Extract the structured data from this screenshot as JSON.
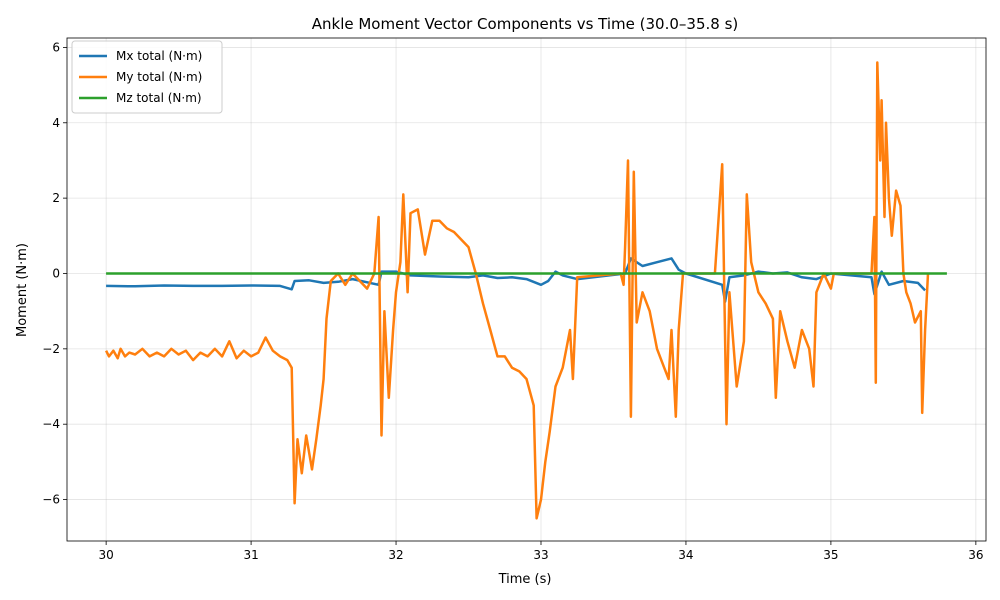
{
  "chart_data": {
    "type": "line",
    "title": "Ankle Moment Vector Components vs Time (30.0–35.8 s)",
    "xlabel": "Time (s)",
    "ylabel": "Moment (N·m)",
    "xlim": [
      29.73,
      36.07
    ],
    "ylim": [
      -7.1,
      6.25
    ],
    "xticks": [
      30,
      31,
      32,
      33,
      34,
      35,
      36
    ],
    "yticks": [
      -6,
      -4,
      -2,
      0,
      2,
      4,
      6
    ],
    "xtick_labels": [
      "30",
      "31",
      "32",
      "33",
      "34",
      "35",
      "36"
    ],
    "ytick_labels": [
      "−6",
      "−4",
      "−2",
      "0",
      "2",
      "4",
      "6"
    ],
    "grid": true,
    "legend_position": "top-left",
    "series": [
      {
        "name": "Mx total (N·m)",
        "color": "#1f77b4",
        "points": [
          [
            30.0,
            -0.33
          ],
          [
            30.2,
            -0.34
          ],
          [
            30.4,
            -0.32
          ],
          [
            30.6,
            -0.33
          ],
          [
            30.8,
            -0.33
          ],
          [
            31.0,
            -0.32
          ],
          [
            31.2,
            -0.33
          ],
          [
            31.28,
            -0.42
          ],
          [
            31.3,
            -0.2
          ],
          [
            31.4,
            -0.18
          ],
          [
            31.5,
            -0.25
          ],
          [
            31.6,
            -0.22
          ],
          [
            31.7,
            -0.15
          ],
          [
            31.88,
            -0.3
          ],
          [
            31.9,
            0.05
          ],
          [
            32.0,
            0.05
          ],
          [
            32.1,
            -0.05
          ],
          [
            32.3,
            -0.08
          ],
          [
            32.5,
            -0.1
          ],
          [
            32.6,
            -0.05
          ],
          [
            32.7,
            -0.12
          ],
          [
            32.8,
            -0.1
          ],
          [
            32.9,
            -0.15
          ],
          [
            33.0,
            -0.3
          ],
          [
            33.05,
            -0.2
          ],
          [
            33.1,
            0.05
          ],
          [
            33.15,
            -0.05
          ],
          [
            33.25,
            -0.15
          ],
          [
            33.58,
            0.0
          ],
          [
            33.62,
            0.4
          ],
          [
            33.7,
            0.2
          ],
          [
            33.8,
            0.3
          ],
          [
            33.9,
            0.4
          ],
          [
            33.95,
            0.1
          ],
          [
            34.0,
            0.0
          ],
          [
            34.25,
            -0.3
          ],
          [
            34.27,
            -0.75
          ],
          [
            34.3,
            -0.1
          ],
          [
            34.4,
            -0.05
          ],
          [
            34.5,
            0.05
          ],
          [
            34.6,
            0.0
          ],
          [
            34.7,
            0.03
          ],
          [
            34.8,
            -0.1
          ],
          [
            34.9,
            -0.15
          ],
          [
            35.0,
            0.0
          ],
          [
            35.28,
            -0.1
          ],
          [
            35.3,
            -0.55
          ],
          [
            35.35,
            0.05
          ],
          [
            35.4,
            -0.3
          ],
          [
            35.5,
            -0.2
          ],
          [
            35.6,
            -0.25
          ],
          [
            35.65,
            -0.45
          ]
        ]
      },
      {
        "name": "My total (N·m)",
        "color": "#ff7f0e",
        "points": [
          [
            30.0,
            -2.05
          ],
          [
            30.02,
            -2.2
          ],
          [
            30.05,
            -2.05
          ],
          [
            30.08,
            -2.25
          ],
          [
            30.1,
            -2.0
          ],
          [
            30.13,
            -2.2
          ],
          [
            30.16,
            -2.1
          ],
          [
            30.2,
            -2.15
          ],
          [
            30.25,
            -2.0
          ],
          [
            30.3,
            -2.2
          ],
          [
            30.35,
            -2.1
          ],
          [
            30.4,
            -2.2
          ],
          [
            30.45,
            -2.0
          ],
          [
            30.5,
            -2.15
          ],
          [
            30.55,
            -2.05
          ],
          [
            30.6,
            -2.3
          ],
          [
            30.65,
            -2.1
          ],
          [
            30.7,
            -2.2
          ],
          [
            30.75,
            -2.0
          ],
          [
            30.8,
            -2.2
          ],
          [
            30.85,
            -1.8
          ],
          [
            30.9,
            -2.25
          ],
          [
            30.95,
            -2.05
          ],
          [
            31.0,
            -2.2
          ],
          [
            31.05,
            -2.1
          ],
          [
            31.1,
            -1.7
          ],
          [
            31.15,
            -2.05
          ],
          [
            31.2,
            -2.2
          ],
          [
            31.25,
            -2.3
          ],
          [
            31.28,
            -2.5
          ],
          [
            31.3,
            -6.1
          ],
          [
            31.32,
            -4.4
          ],
          [
            31.35,
            -5.3
          ],
          [
            31.38,
            -4.3
          ],
          [
            31.42,
            -5.2
          ],
          [
            31.45,
            -4.4
          ],
          [
            31.48,
            -3.5
          ],
          [
            31.5,
            -2.8
          ],
          [
            31.52,
            -1.2
          ],
          [
            31.55,
            -0.2
          ],
          [
            31.6,
            0.0
          ],
          [
            31.65,
            -0.3
          ],
          [
            31.7,
            0.0
          ],
          [
            31.8,
            -0.4
          ],
          [
            31.85,
            0.0
          ],
          [
            31.88,
            1.5
          ],
          [
            31.9,
            -4.3
          ],
          [
            31.92,
            -1.0
          ],
          [
            31.95,
            -3.3
          ],
          [
            31.98,
            -1.5
          ],
          [
            32.0,
            -0.5
          ],
          [
            32.03,
            0.3
          ],
          [
            32.05,
            2.1
          ],
          [
            32.08,
            -0.5
          ],
          [
            32.1,
            1.6
          ],
          [
            32.15,
            1.7
          ],
          [
            32.2,
            0.5
          ],
          [
            32.25,
            1.4
          ],
          [
            32.3,
            1.4
          ],
          [
            32.35,
            1.2
          ],
          [
            32.4,
            1.1
          ],
          [
            32.45,
            0.9
          ],
          [
            32.5,
            0.7
          ],
          [
            32.55,
            0.0
          ],
          [
            32.6,
            -0.8
          ],
          [
            32.65,
            -1.5
          ],
          [
            32.7,
            -2.2
          ],
          [
            32.75,
            -2.2
          ],
          [
            32.8,
            -2.5
          ],
          [
            32.85,
            -2.6
          ],
          [
            32.9,
            -2.8
          ],
          [
            32.95,
            -3.5
          ],
          [
            32.97,
            -6.5
          ],
          [
            33.0,
            -6.0
          ],
          [
            33.03,
            -5.0
          ],
          [
            33.06,
            -4.2
          ],
          [
            33.1,
            -3.0
          ],
          [
            33.15,
            -2.5
          ],
          [
            33.2,
            -1.5
          ],
          [
            33.22,
            -2.8
          ],
          [
            33.25,
            -0.1
          ],
          [
            33.55,
            0.0
          ],
          [
            33.57,
            -0.3
          ],
          [
            33.58,
            0.7
          ],
          [
            33.6,
            3.0
          ],
          [
            33.62,
            -3.8
          ],
          [
            33.64,
            2.7
          ],
          [
            33.66,
            -1.3
          ],
          [
            33.7,
            -0.5
          ],
          [
            33.75,
            -1.0
          ],
          [
            33.8,
            -2.0
          ],
          [
            33.85,
            -2.5
          ],
          [
            33.88,
            -2.8
          ],
          [
            33.9,
            -1.5
          ],
          [
            33.93,
            -3.8
          ],
          [
            33.95,
            -1.5
          ],
          [
            33.98,
            0.0
          ],
          [
            34.2,
            0.0
          ],
          [
            34.25,
            2.9
          ],
          [
            34.28,
            -4.0
          ],
          [
            34.3,
            -0.5
          ],
          [
            34.35,
            -3.0
          ],
          [
            34.4,
            -1.8
          ],
          [
            34.42,
            2.1
          ],
          [
            34.45,
            0.3
          ],
          [
            34.5,
            -0.5
          ],
          [
            34.55,
            -0.8
          ],
          [
            34.6,
            -1.2
          ],
          [
            34.62,
            -3.3
          ],
          [
            34.65,
            -1.0
          ],
          [
            34.7,
            -1.8
          ],
          [
            34.75,
            -2.5
          ],
          [
            34.8,
            -1.5
          ],
          [
            34.85,
            -2.0
          ],
          [
            34.88,
            -3.0
          ],
          [
            34.9,
            -0.5
          ],
          [
            34.95,
            0.0
          ],
          [
            35.0,
            -0.4
          ],
          [
            35.02,
            0.0
          ],
          [
            35.28,
            0.0
          ],
          [
            35.3,
            1.5
          ],
          [
            35.31,
            -2.9
          ],
          [
            35.32,
            5.6
          ],
          [
            35.34,
            3.0
          ],
          [
            35.35,
            4.6
          ],
          [
            35.37,
            1.5
          ],
          [
            35.38,
            4.0
          ],
          [
            35.4,
            2.0
          ],
          [
            35.42,
            1.0
          ],
          [
            35.45,
            2.2
          ],
          [
            35.48,
            1.8
          ],
          [
            35.5,
            0.0
          ],
          [
            35.52,
            -0.5
          ],
          [
            35.55,
            -0.8
          ],
          [
            35.58,
            -1.3
          ],
          [
            35.62,
            -1.0
          ],
          [
            35.63,
            -3.7
          ],
          [
            35.65,
            -1.5
          ],
          [
            35.67,
            0.0
          ]
        ]
      },
      {
        "name": "Mz total (N·m)",
        "color": "#2ca02c",
        "points": [
          [
            30.0,
            0.0
          ],
          [
            35.8,
            0.0
          ]
        ]
      }
    ]
  }
}
